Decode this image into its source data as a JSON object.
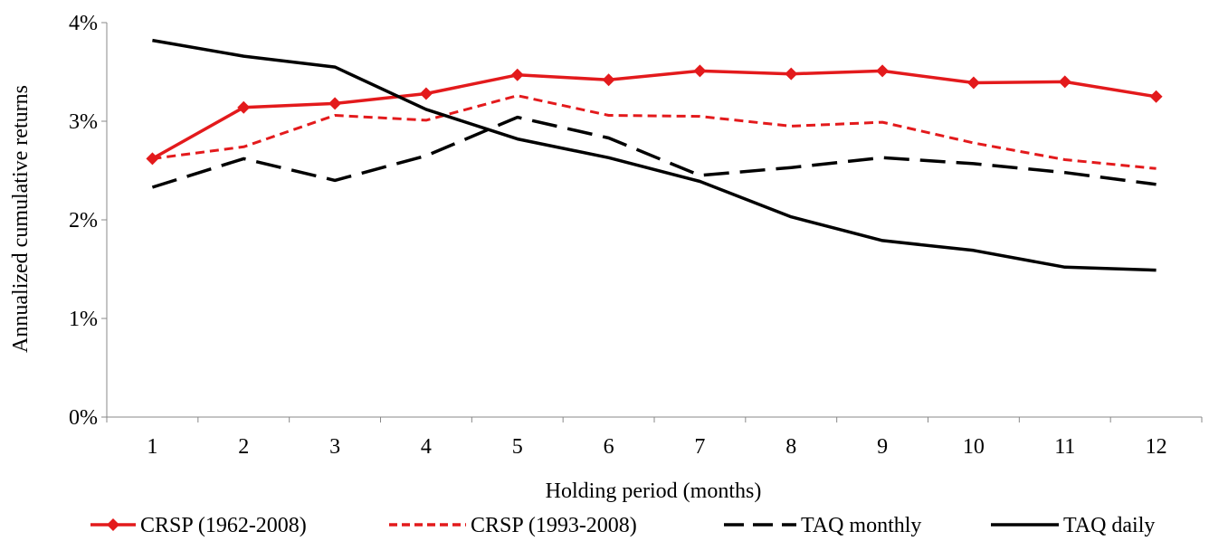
{
  "chart_data": {
    "type": "line",
    "title": "",
    "xlabel": "Holding period (months)",
    "ylabel": "Annualized cumulative returns",
    "categories": [
      "1",
      "2",
      "3",
      "4",
      "5",
      "6",
      "7",
      "8",
      "9",
      "10",
      "11",
      "12"
    ],
    "ylim": [
      0,
      4
    ],
    "yticks": [
      0,
      1,
      2,
      3,
      4
    ],
    "ytick_labels": [
      "0%",
      "1%",
      "2%",
      "3%",
      "4%"
    ],
    "grid": false,
    "legend_position": "bottom",
    "series": [
      {
        "name": "CRSP (1962-2008)",
        "color": "#e31a1c",
        "style": "solid-diamond",
        "values": [
          2.62,
          3.14,
          3.18,
          3.28,
          3.47,
          3.42,
          3.51,
          3.48,
          3.51,
          3.39,
          3.4,
          3.25
        ]
      },
      {
        "name": "CRSP (1993-2008)",
        "color": "#e31a1c",
        "style": "short-dash",
        "values": [
          2.62,
          2.74,
          3.06,
          3.01,
          3.26,
          3.06,
          3.05,
          2.95,
          2.99,
          2.78,
          2.61,
          2.52
        ]
      },
      {
        "name": "TAQ monthly",
        "color": "#000000",
        "style": "long-dash",
        "values": [
          2.33,
          2.62,
          2.4,
          2.65,
          3.04,
          2.83,
          2.45,
          2.53,
          2.63,
          2.57,
          2.48,
          2.36
        ]
      },
      {
        "name": "TAQ daily",
        "color": "#000000",
        "style": "solid",
        "values": [
          3.82,
          3.66,
          3.55,
          3.12,
          2.82,
          2.63,
          2.39,
          2.03,
          1.79,
          1.69,
          1.52,
          1.49
        ]
      }
    ]
  }
}
